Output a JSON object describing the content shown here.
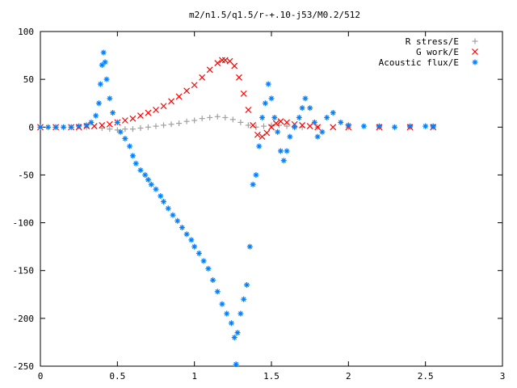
{
  "chart_data": {
    "type": "scatter",
    "title": "m2/n1.5/q1.5/r-+.10-j53/M0.2/512",
    "xlabel": "",
    "ylabel": "",
    "xlim": [
      0,
      3
    ],
    "ylim": [
      -250,
      100
    ],
    "x_ticks": [
      "0",
      "0.5",
      "1",
      "1.5",
      "2",
      "2.5",
      "3"
    ],
    "y_ticks": [
      "100",
      "50",
      "0",
      "-50",
      "-100",
      "-150",
      "-200",
      "-250"
    ],
    "grid": false,
    "legend_position": "top-right",
    "series": [
      {
        "name": "R stress/E",
        "marker": "plus",
        "color": "#a0a0a0",
        "points": [
          [
            0.0,
            0
          ],
          [
            0.1,
            0
          ],
          [
            0.2,
            0
          ],
          [
            0.3,
            0
          ],
          [
            0.4,
            -1
          ],
          [
            0.45,
            -2
          ],
          [
            0.5,
            -3
          ],
          [
            0.55,
            -2
          ],
          [
            0.6,
            -2
          ],
          [
            0.65,
            -1
          ],
          [
            0.7,
            0
          ],
          [
            0.75,
            1
          ],
          [
            0.8,
            2
          ],
          [
            0.85,
            3
          ],
          [
            0.9,
            4
          ],
          [
            0.95,
            6
          ],
          [
            1.0,
            7
          ],
          [
            1.05,
            9
          ],
          [
            1.1,
            10
          ],
          [
            1.15,
            11
          ],
          [
            1.2,
            10
          ],
          [
            1.25,
            8
          ],
          [
            1.3,
            5
          ],
          [
            1.35,
            2
          ],
          [
            1.4,
            0
          ],
          [
            1.45,
            1
          ],
          [
            1.5,
            2
          ],
          [
            1.55,
            2
          ],
          [
            1.6,
            1
          ],
          [
            1.7,
            0
          ],
          [
            1.8,
            0
          ],
          [
            2.0,
            0
          ],
          [
            2.2,
            0
          ],
          [
            2.4,
            0
          ],
          [
            2.55,
            0
          ]
        ]
      },
      {
        "name": "G work/E",
        "marker": "cross",
        "color": "#ff0000",
        "points": [
          [
            0.0,
            0
          ],
          [
            0.1,
            0
          ],
          [
            0.2,
            0
          ],
          [
            0.25,
            0
          ],
          [
            0.3,
            1
          ],
          [
            0.35,
            1
          ],
          [
            0.4,
            2
          ],
          [
            0.45,
            3
          ],
          [
            0.5,
            5
          ],
          [
            0.55,
            7
          ],
          [
            0.6,
            9
          ],
          [
            0.65,
            12
          ],
          [
            0.7,
            15
          ],
          [
            0.75,
            18
          ],
          [
            0.8,
            22
          ],
          [
            0.85,
            27
          ],
          [
            0.9,
            32
          ],
          [
            0.95,
            38
          ],
          [
            1.0,
            44
          ],
          [
            1.05,
            52
          ],
          [
            1.1,
            60
          ],
          [
            1.15,
            67
          ],
          [
            1.18,
            70
          ],
          [
            1.2,
            70
          ],
          [
            1.23,
            69
          ],
          [
            1.26,
            64
          ],
          [
            1.29,
            52
          ],
          [
            1.32,
            35
          ],
          [
            1.35,
            18
          ],
          [
            1.38,
            2
          ],
          [
            1.41,
            -8
          ],
          [
            1.44,
            -10
          ],
          [
            1.47,
            -6
          ],
          [
            1.5,
            0
          ],
          [
            1.53,
            4
          ],
          [
            1.56,
            6
          ],
          [
            1.6,
            5
          ],
          [
            1.65,
            3
          ],
          [
            1.7,
            2
          ],
          [
            1.75,
            1
          ],
          [
            1.8,
            0
          ],
          [
            1.9,
            0
          ],
          [
            2.0,
            0
          ],
          [
            2.2,
            0
          ],
          [
            2.4,
            0
          ],
          [
            2.55,
            0
          ]
        ]
      },
      {
        "name": "Acoustic flux/E",
        "marker": "star",
        "color": "#0080ff",
        "points": [
          [
            0.0,
            0
          ],
          [
            0.05,
            0
          ],
          [
            0.1,
            0
          ],
          [
            0.15,
            0
          ],
          [
            0.2,
            0
          ],
          [
            0.25,
            1
          ],
          [
            0.3,
            2
          ],
          [
            0.33,
            5
          ],
          [
            0.36,
            12
          ],
          [
            0.38,
            25
          ],
          [
            0.39,
            45
          ],
          [
            0.4,
            65
          ],
          [
            0.41,
            78
          ],
          [
            0.42,
            68
          ],
          [
            0.43,
            50
          ],
          [
            0.45,
            30
          ],
          [
            0.47,
            15
          ],
          [
            0.5,
            5
          ],
          [
            0.52,
            -5
          ],
          [
            0.55,
            -12
          ],
          [
            0.58,
            -20
          ],
          [
            0.6,
            -30
          ],
          [
            0.62,
            -38
          ],
          [
            0.65,
            -45
          ],
          [
            0.68,
            -50
          ],
          [
            0.7,
            -55
          ],
          [
            0.72,
            -60
          ],
          [
            0.75,
            -65
          ],
          [
            0.78,
            -72
          ],
          [
            0.8,
            -78
          ],
          [
            0.83,
            -85
          ],
          [
            0.86,
            -92
          ],
          [
            0.89,
            -98
          ],
          [
            0.92,
            -105
          ],
          [
            0.95,
            -112
          ],
          [
            0.98,
            -118
          ],
          [
            1.0,
            -125
          ],
          [
            1.03,
            -132
          ],
          [
            1.06,
            -140
          ],
          [
            1.09,
            -148
          ],
          [
            1.12,
            -160
          ],
          [
            1.15,
            -172
          ],
          [
            1.18,
            -185
          ],
          [
            1.21,
            -195
          ],
          [
            1.24,
            -205
          ],
          [
            1.26,
            -220
          ],
          [
            1.27,
            -248
          ],
          [
            1.28,
            -215
          ],
          [
            1.3,
            -195
          ],
          [
            1.32,
            -180
          ],
          [
            1.34,
            -165
          ],
          [
            1.36,
            -125
          ],
          [
            1.38,
            -60
          ],
          [
            1.4,
            -50
          ],
          [
            1.42,
            -20
          ],
          [
            1.44,
            10
          ],
          [
            1.46,
            25
          ],
          [
            1.48,
            45
          ],
          [
            1.5,
            30
          ],
          [
            1.52,
            10
          ],
          [
            1.54,
            -5
          ],
          [
            1.56,
            -25
          ],
          [
            1.58,
            -35
          ],
          [
            1.6,
            -25
          ],
          [
            1.62,
            -10
          ],
          [
            1.65,
            0
          ],
          [
            1.68,
            10
          ],
          [
            1.7,
            20
          ],
          [
            1.72,
            30
          ],
          [
            1.75,
            20
          ],
          [
            1.78,
            5
          ],
          [
            1.8,
            -10
          ],
          [
            1.83,
            -5
          ],
          [
            1.86,
            10
          ],
          [
            1.9,
            15
          ],
          [
            1.95,
            5
          ],
          [
            2.0,
            2
          ],
          [
            2.1,
            1
          ],
          [
            2.2,
            1
          ],
          [
            2.3,
            0
          ],
          [
            2.4,
            1
          ],
          [
            2.5,
            1
          ],
          [
            2.55,
            1
          ]
        ]
      }
    ]
  }
}
